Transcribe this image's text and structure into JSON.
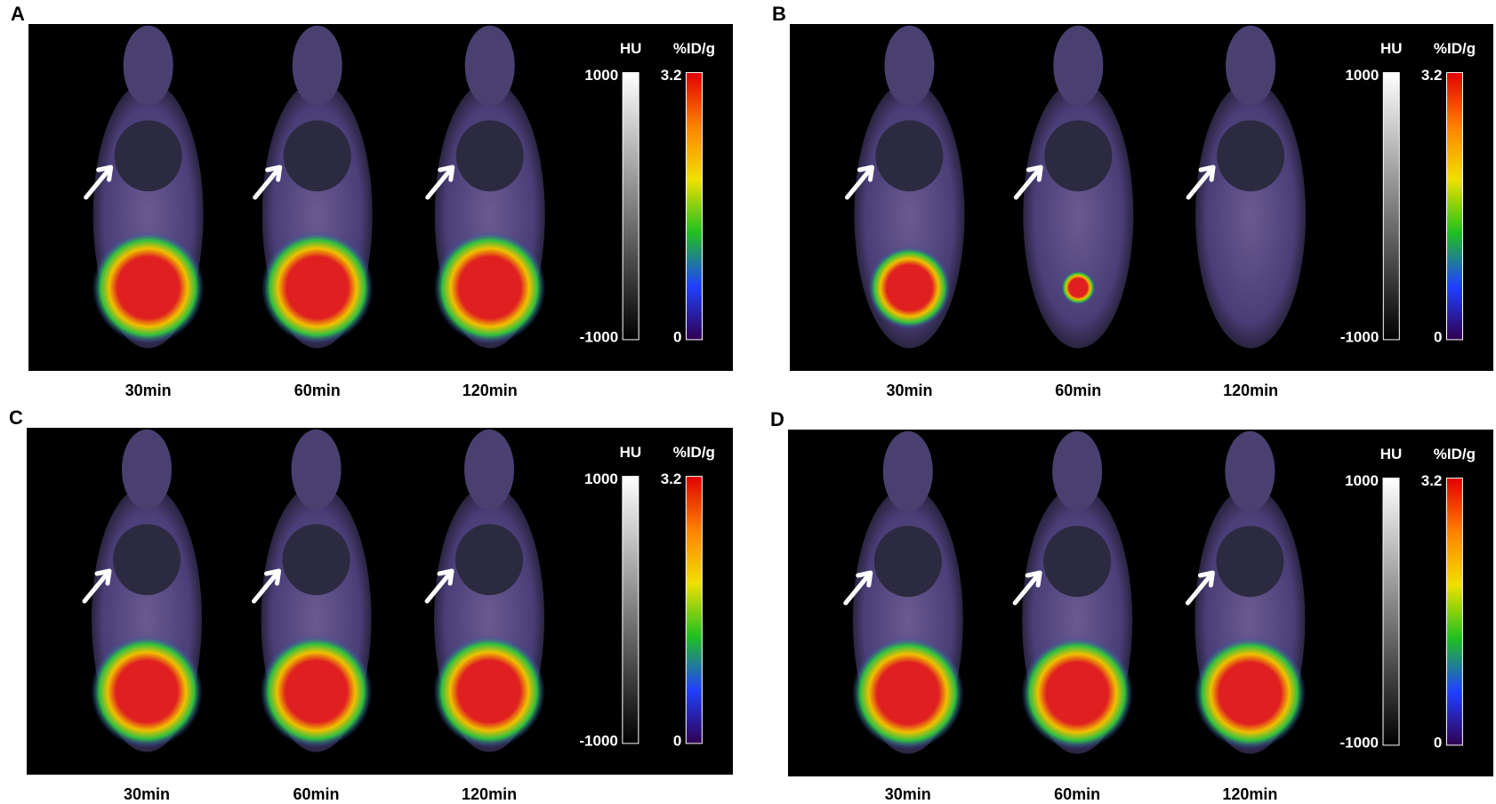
{
  "panels": [
    {
      "label": "A",
      "times": [
        "30min",
        "60min",
        "120min"
      ],
      "scale": {
        "hu_title": "HU",
        "hu_max": "1000",
        "hu_min": "-1000",
        "pet_title": "%ID/g",
        "pet_max": "3.2",
        "pet_min": "0"
      }
    },
    {
      "label": "B",
      "times": [
        "30min",
        "60min",
        "120min"
      ],
      "scale": {
        "hu_title": "HU",
        "hu_max": "1000",
        "hu_min": "-1000",
        "pet_title": "%ID/g",
        "pet_max": "3.2",
        "pet_min": "0"
      }
    },
    {
      "label": "C",
      "times": [
        "30min",
        "60min",
        "120min"
      ],
      "scale": {
        "hu_title": "HU",
        "hu_max": "1000",
        "hu_min": "-1000",
        "pet_title": "%ID/g",
        "pet_max": "3.2",
        "pet_min": "0"
      }
    },
    {
      "label": "D",
      "times": [
        "30min",
        "60min",
        "120min"
      ],
      "scale": {
        "hu_title": "HU",
        "hu_max": "1000",
        "hu_min": "-1000",
        "pet_title": "%ID/g",
        "pet_max": "3.2",
        "pet_min": "0"
      }
    }
  ]
}
